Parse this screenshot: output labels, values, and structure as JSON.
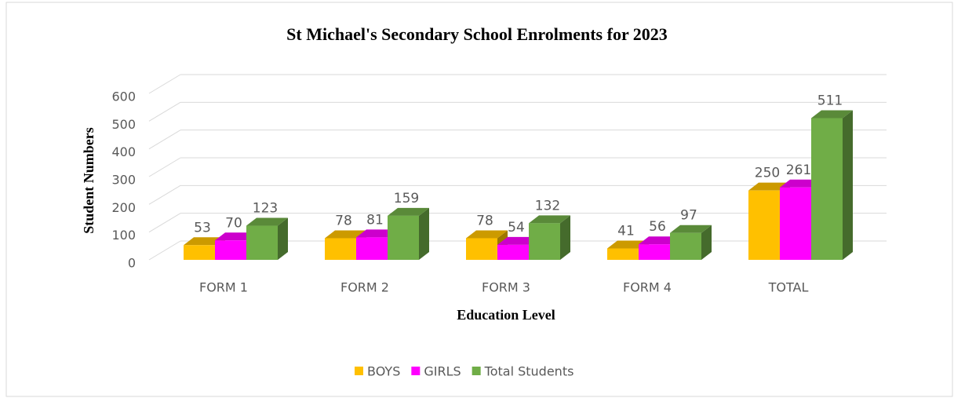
{
  "chart_data": {
    "type": "bar3d",
    "title": "St Michael's Secondary School Enrolments for 2023",
    "x_label": "Education Level",
    "y_label": "Student Numbers",
    "categories": [
      "FORM 1",
      "FORM 2",
      "FORM 3",
      "FORM 4",
      "TOTAL"
    ],
    "series": [
      {
        "name": "BOYS",
        "color": "#ffc000",
        "values": [
          53,
          78,
          78,
          41,
          250
        ]
      },
      {
        "name": "GIRLS",
        "color": "#ff00ff",
        "values": [
          70,
          81,
          54,
          56,
          261
        ]
      },
      {
        "name": "Total Students",
        "color": "#70ad47",
        "values": [
          123,
          159,
          132,
          97,
          511
        ]
      }
    ],
    "ylim": [
      0,
      600
    ],
    "yticks": [
      0,
      100,
      200,
      300,
      400,
      500,
      600
    ],
    "grid": true,
    "legend": "bottom"
  }
}
